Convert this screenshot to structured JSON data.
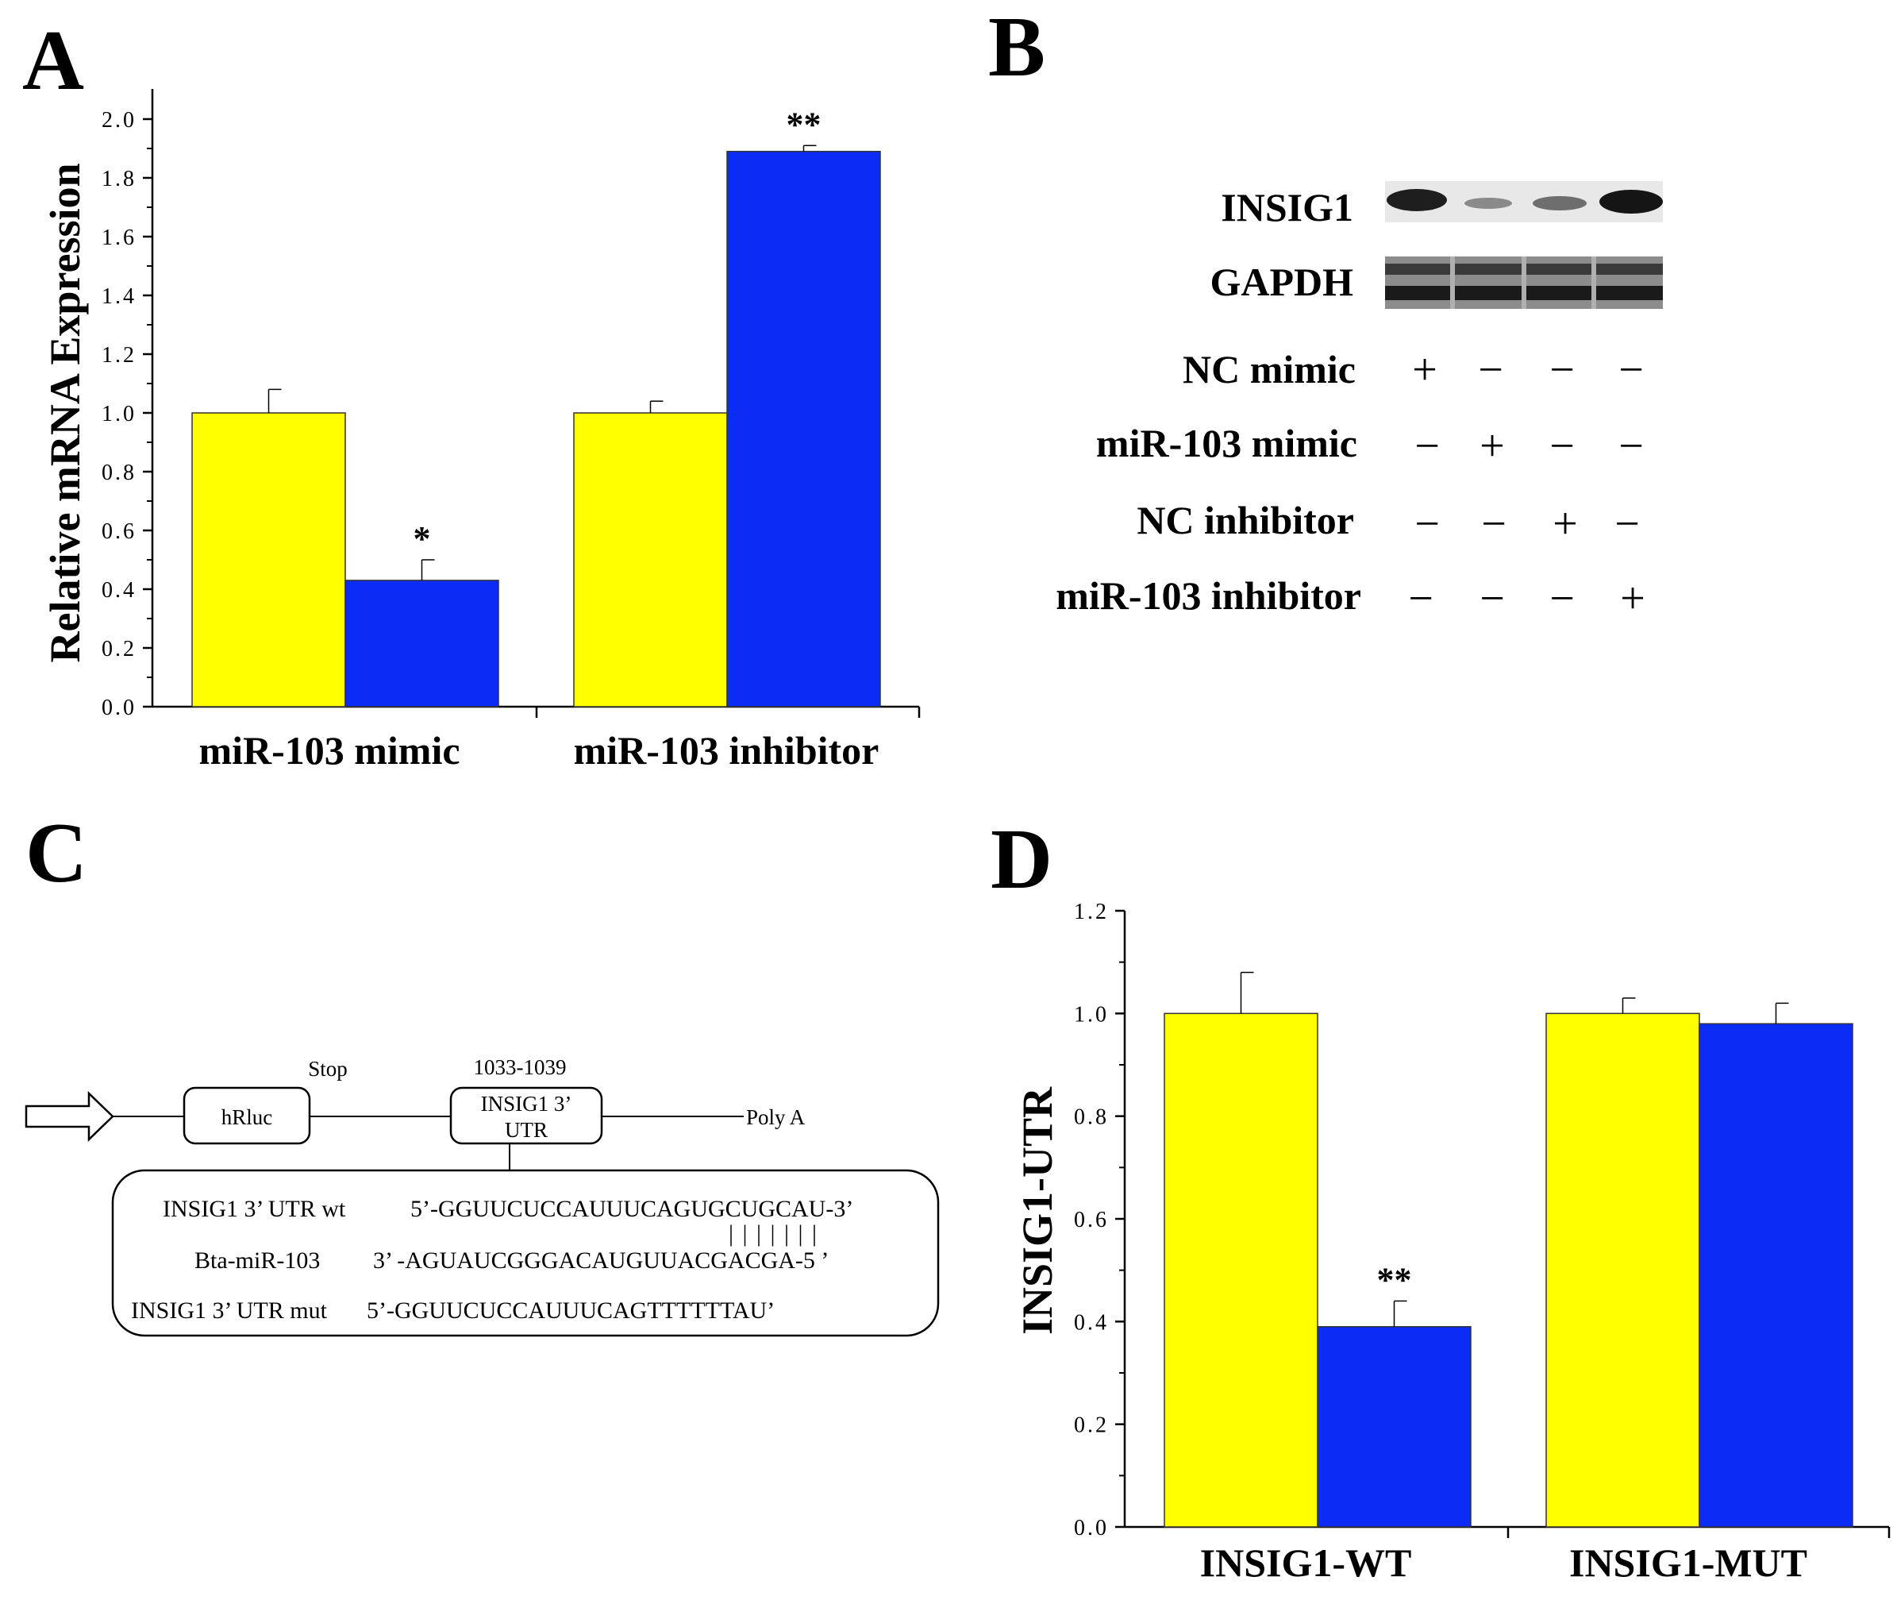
{
  "panels": {
    "a": "A",
    "b": "B",
    "c": "C",
    "d": "D"
  },
  "colors": {
    "control": "#ffff00",
    "treatment": "#0a2cf5",
    "axis": "#000000"
  },
  "chart_data": [
    {
      "panel": "A",
      "type": "bar",
      "ylabel": "Relative mRNA Expression",
      "ylim": [
        0,
        2.0
      ],
      "yticks": [
        "0.0",
        "0.2",
        "0.4",
        "0.6",
        "0.8",
        "1.0",
        "1.2",
        "1.4",
        "1.6",
        "1.8",
        "2.0"
      ],
      "categories": [
        "miR-103 mimic",
        "miR-103 inhibitor"
      ],
      "series": [
        {
          "name": "control",
          "values": [
            1.0,
            1.0
          ],
          "errors": [
            0.08,
            0.04
          ]
        },
        {
          "name": "treatment",
          "values": [
            0.43,
            1.89
          ],
          "errors": [
            0.07,
            0.02
          ]
        }
      ],
      "significance": [
        "*",
        "**"
      ]
    },
    {
      "panel": "D",
      "type": "bar",
      "ylabel": "INSIG1-UTR",
      "ylim": [
        0,
        1.2
      ],
      "yticks": [
        "0.0",
        "0.2",
        "0.4",
        "0.6",
        "0.8",
        "1.0",
        "1.2"
      ],
      "categories": [
        "INSIG1-WT",
        "INSIG1-MUT"
      ],
      "series": [
        {
          "name": "control",
          "values": [
            1.0,
            1.0
          ],
          "errors": [
            0.08,
            0.03
          ]
        },
        {
          "name": "treatment",
          "values": [
            0.39,
            0.98
          ],
          "errors": [
            0.05,
            0.04
          ]
        }
      ],
      "significance": [
        "**",
        ""
      ]
    }
  ],
  "western_blot": {
    "proteins": [
      "INSIG1",
      "GAPDH"
    ],
    "conditions": [
      {
        "label": "NC mimic",
        "signs": [
          "+",
          "−",
          "−",
          "−"
        ]
      },
      {
        "label": "miR-103 mimic",
        "signs": [
          "−",
          "+",
          "−",
          "−"
        ]
      },
      {
        "label": "NC inhibitor",
        "signs": [
          "−",
          "−",
          "+",
          "−"
        ]
      },
      {
        "label": "miR-103 inhibitor",
        "signs": [
          "−",
          "−",
          "−",
          "+"
        ]
      }
    ]
  },
  "diagram": {
    "hrluc": "hRluc",
    "stop": "Stop",
    "site": "1033-1039",
    "utr_line1": "INSIG1 3’",
    "utr_line2": "UTR",
    "polya": "Poly A",
    "wt_label": "INSIG1  3’ UTR wt",
    "wt_seq": "5’-GGUUCUCCAUUUCAGUGCUGCAU-3’",
    "pairing": "| | | | | | |",
    "mir_label": "Bta-miR-103",
    "mir_seq": "3’  -AGUAUCGGGACAUGUUACGACGA-5 ’",
    "mut_label": "INSIG1  3’ UTR mut",
    "mut_seq": "5’-GGUUCUCCAUUUCAGTTTTTTAU’"
  }
}
